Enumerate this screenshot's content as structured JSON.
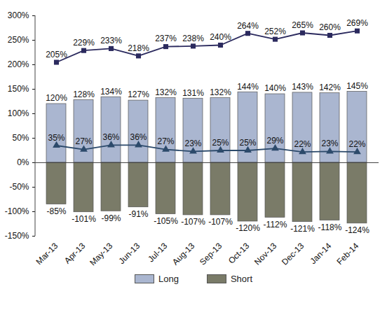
{
  "chart_data": {
    "type": "bar",
    "categories": [
      "Mar-13",
      "Apr-13",
      "May-13",
      "Jun-13",
      "Jul-13",
      "Aug-13",
      "Sep-13",
      "Oct-13",
      "Nov-13",
      "Dec-13",
      "Jan-14",
      "Feb-14"
    ],
    "series": [
      {
        "name": "Long",
        "type": "bar",
        "color": "#aab6d0",
        "values": [
          120,
          128,
          134,
          127,
          132,
          131,
          132,
          144,
          140,
          143,
          142,
          145
        ],
        "value_labels": [
          "120%",
          "128%",
          "134%",
          "127%",
          "132%",
          "131%",
          "132%",
          "144%",
          "140%",
          "143%",
          "142%",
          "145%"
        ]
      },
      {
        "name": "Short",
        "type": "bar",
        "color": "#7a7b68",
        "values": [
          -85,
          -101,
          -99,
          -91,
          -105,
          -107,
          -107,
          -120,
          -112,
          -121,
          -118,
          -124
        ],
        "value_labels": [
          "-85%",
          "-101%",
          "-99%",
          "-91%",
          "-105%",
          "-107%",
          "-107%",
          "-120%",
          "-112%",
          "-121%",
          "-118%",
          "-124%"
        ]
      },
      {
        "type": "line",
        "color": "#2b2a5e",
        "marker": "square",
        "values": [
          205,
          229,
          233,
          218,
          237,
          238,
          240,
          264,
          252,
          265,
          260,
          269
        ],
        "value_labels": [
          "205%",
          "229%",
          "233%",
          "218%",
          "237%",
          "238%",
          "240%",
          "264%",
          "252%",
          "265%",
          "260%",
          "269%"
        ]
      },
      {
        "type": "line",
        "color": "#2c4a6b",
        "marker": "triangle",
        "values": [
          35,
          27,
          36,
          36,
          27,
          23,
          25,
          25,
          29,
          22,
          23,
          22
        ],
        "value_labels": [
          "35%",
          "27%",
          "36%",
          "36%",
          "27%",
          "23%",
          "25%",
          "25%",
          "29%",
          "22%",
          "23%",
          "22%"
        ]
      }
    ],
    "ylim": [
      -150,
      300
    ],
    "yticks": [
      {
        "value": -150,
        "label": "-150%"
      },
      {
        "value": -100,
        "label": "-100%"
      },
      {
        "value": -50,
        "label": "-50%"
      },
      {
        "value": 0,
        "label": "0%"
      },
      {
        "value": 50,
        "label": "50%"
      },
      {
        "value": 100,
        "label": "100%"
      },
      {
        "value": 150,
        "label": "150%"
      },
      {
        "value": 200,
        "label": "200%"
      },
      {
        "value": 250,
        "label": "250%"
      },
      {
        "value": 300,
        "label": "300%"
      }
    ],
    "grid": false,
    "stacked": true,
    "data_labels": true,
    "legend": "bottom"
  }
}
